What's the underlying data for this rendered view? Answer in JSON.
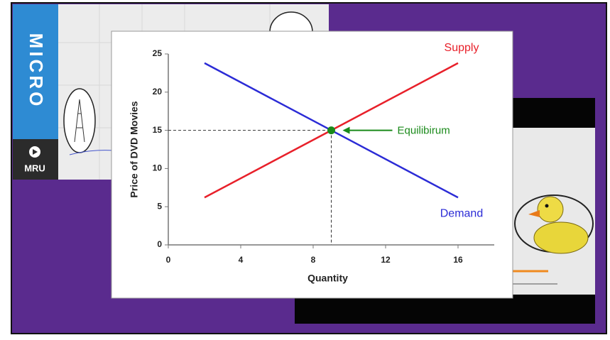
{
  "branding": {
    "series_title": "MICRO",
    "logo_text": "MRU"
  },
  "chart_data": {
    "type": "line",
    "x_label": "Quantity",
    "y_label": "Price of DVD Movies",
    "x": [
      2,
      16
    ],
    "series": [
      {
        "name": "Supply",
        "color": "#e8202a",
        "values": [
          6.2,
          23.8
        ]
      },
      {
        "name": "Demand",
        "color": "#2b2bd6",
        "values": [
          23.8,
          6.2
        ]
      }
    ],
    "points": [
      {
        "x": 9,
        "y": 15,
        "color": "#1a8a1a"
      }
    ],
    "annotation": "Equilibirum",
    "xlim": [
      0,
      18
    ],
    "xticks": [
      0,
      4,
      8,
      12,
      16
    ],
    "ylim": [
      0,
      25
    ],
    "yticks": [
      0,
      5,
      10,
      15,
      20,
      25
    ]
  }
}
